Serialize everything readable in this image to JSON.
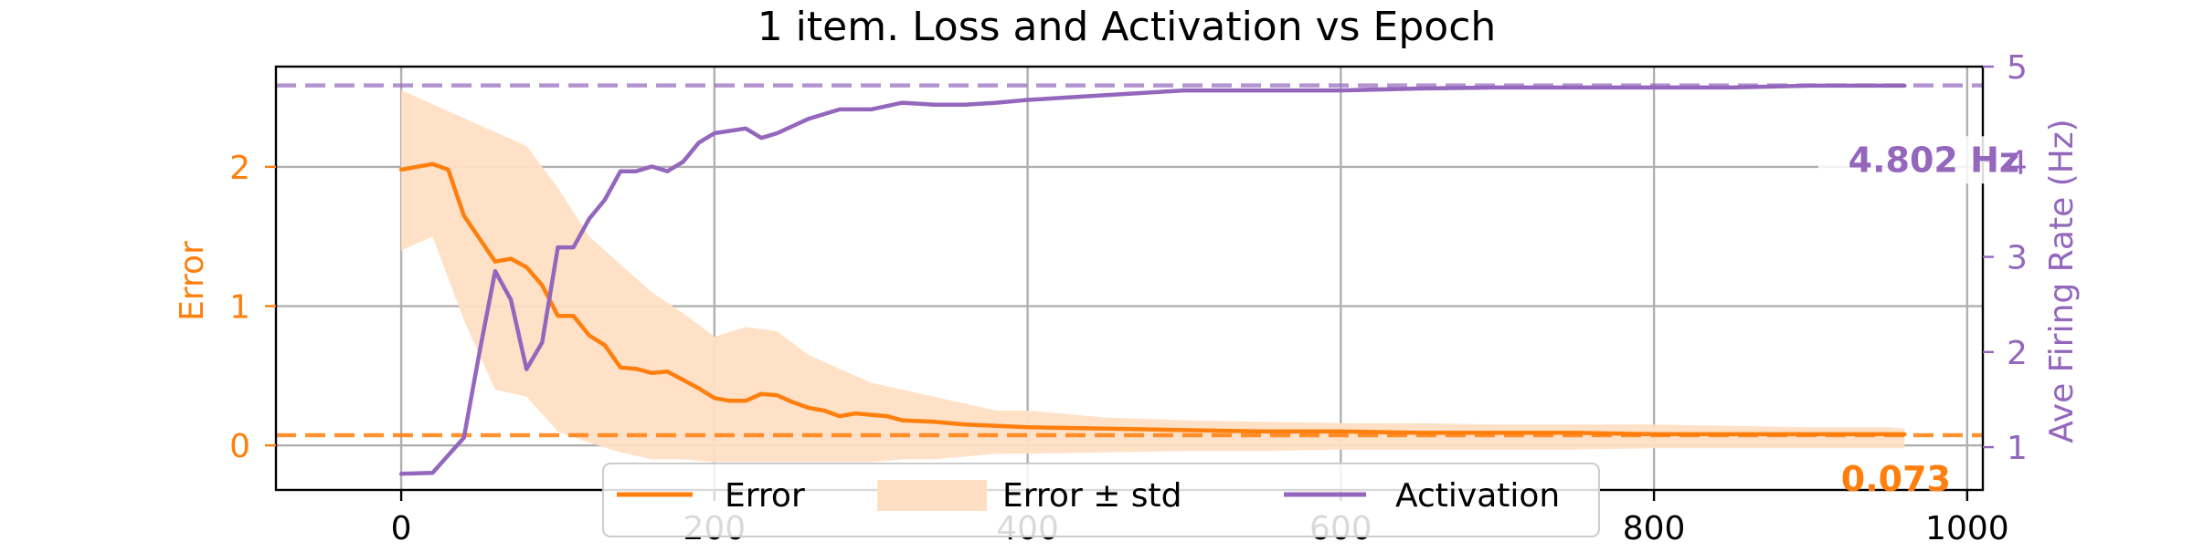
{
  "chart_data": {
    "type": "line",
    "title": "1 item. Loss and Activation vs Epoch",
    "xlabel": "",
    "xlim": [
      -80,
      1010
    ],
    "x_ticks": [
      0,
      200,
      400,
      600,
      800,
      1000
    ],
    "y_left": {
      "label": "Error",
      "lim": [
        -0.32,
        2.72
      ],
      "ticks": [
        0,
        1,
        2
      ],
      "color": "#ff7f0e"
    },
    "y_right": {
      "label": "Ave Firing Rate (Hz)",
      "lim": [
        0.55,
        5.0
      ],
      "ticks": [
        1,
        2,
        3,
        4,
        5
      ],
      "color": "#9467bd"
    },
    "grid": true,
    "legend": {
      "placement": "lower-center",
      "entries": [
        "Error",
        "Error ± std",
        "Activation"
      ]
    },
    "series": [
      {
        "name": "Error",
        "axis": "left",
        "color": "#ff7f0e",
        "x": [
          0,
          20,
          30,
          40,
          60,
          70,
          80,
          90,
          100,
          110,
          120,
          130,
          140,
          150,
          160,
          170,
          180,
          190,
          200,
          210,
          220,
          230,
          240,
          250,
          260,
          270,
          280,
          290,
          300,
          310,
          320,
          340,
          360,
          380,
          400,
          450,
          500,
          550,
          600,
          650,
          700,
          750,
          800,
          850,
          900,
          950,
          960
        ],
        "y": [
          1.98,
          2.02,
          1.98,
          1.65,
          1.32,
          1.34,
          1.28,
          1.15,
          0.93,
          0.93,
          0.79,
          0.72,
          0.56,
          0.55,
          0.52,
          0.53,
          0.47,
          0.41,
          0.34,
          0.32,
          0.32,
          0.37,
          0.36,
          0.31,
          0.27,
          0.25,
          0.21,
          0.23,
          0.22,
          0.21,
          0.18,
          0.17,
          0.15,
          0.14,
          0.13,
          0.12,
          0.11,
          0.1,
          0.1,
          0.09,
          0.09,
          0.09,
          0.08,
          0.08,
          0.08,
          0.08,
          0.08
        ]
      },
      {
        "name": "Error ± std",
        "axis": "left",
        "kind": "band",
        "color": "#ffdfc4",
        "x": [
          0,
          20,
          40,
          60,
          80,
          100,
          120,
          140,
          160,
          180,
          200,
          220,
          240,
          260,
          280,
          300,
          320,
          340,
          360,
          380,
          400,
          450,
          500,
          550,
          600,
          650,
          700,
          750,
          800,
          850,
          900,
          950,
          960
        ],
        "upper": [
          2.55,
          2.45,
          2.35,
          2.25,
          2.15,
          1.85,
          1.5,
          1.3,
          1.1,
          0.95,
          0.78,
          0.85,
          0.82,
          0.65,
          0.55,
          0.45,
          0.4,
          0.35,
          0.3,
          0.25,
          0.25,
          0.2,
          0.18,
          0.17,
          0.16,
          0.16,
          0.15,
          0.15,
          0.15,
          0.14,
          0.13,
          0.13,
          0.12
        ],
        "lower": [
          1.4,
          1.5,
          0.9,
          0.4,
          0.35,
          0.1,
          0.02,
          -0.05,
          -0.1,
          -0.1,
          -0.12,
          -0.12,
          -0.12,
          -0.12,
          -0.12,
          -0.12,
          -0.1,
          -0.1,
          -0.08,
          -0.06,
          -0.06,
          -0.05,
          -0.04,
          -0.04,
          -0.03,
          -0.03,
          -0.03,
          -0.03,
          -0.02,
          -0.02,
          -0.02,
          -0.02,
          -0.02
        ]
      },
      {
        "name": "Activation",
        "axis": "right",
        "color": "#9467bd",
        "x": [
          0,
          20,
          40,
          50,
          60,
          70,
          80,
          90,
          100,
          110,
          120,
          130,
          140,
          150,
          160,
          170,
          180,
          190,
          200,
          220,
          230,
          240,
          260,
          280,
          300,
          320,
          340,
          360,
          380,
          400,
          450,
          500,
          550,
          600,
          650,
          700,
          750,
          800,
          850,
          900,
          950,
          960
        ],
        "y": [
          0.72,
          0.73,
          1.1,
          2.0,
          2.85,
          2.55,
          1.82,
          2.1,
          3.1,
          3.1,
          3.4,
          3.6,
          3.9,
          3.9,
          3.95,
          3.9,
          4.0,
          4.2,
          4.3,
          4.35,
          4.25,
          4.3,
          4.45,
          4.55,
          4.55,
          4.62,
          4.6,
          4.6,
          4.62,
          4.65,
          4.7,
          4.75,
          4.75,
          4.75,
          4.77,
          4.78,
          4.78,
          4.78,
          4.78,
          4.8,
          4.8,
          4.8
        ]
      }
    ],
    "reference_lines": [
      {
        "axis": "left",
        "value": 0.073,
        "label": "0.073",
        "color": "#ff7f0e"
      },
      {
        "axis": "right",
        "value": 4.802,
        "label": "4.802 Hz",
        "color": "#9467bd"
      }
    ]
  }
}
